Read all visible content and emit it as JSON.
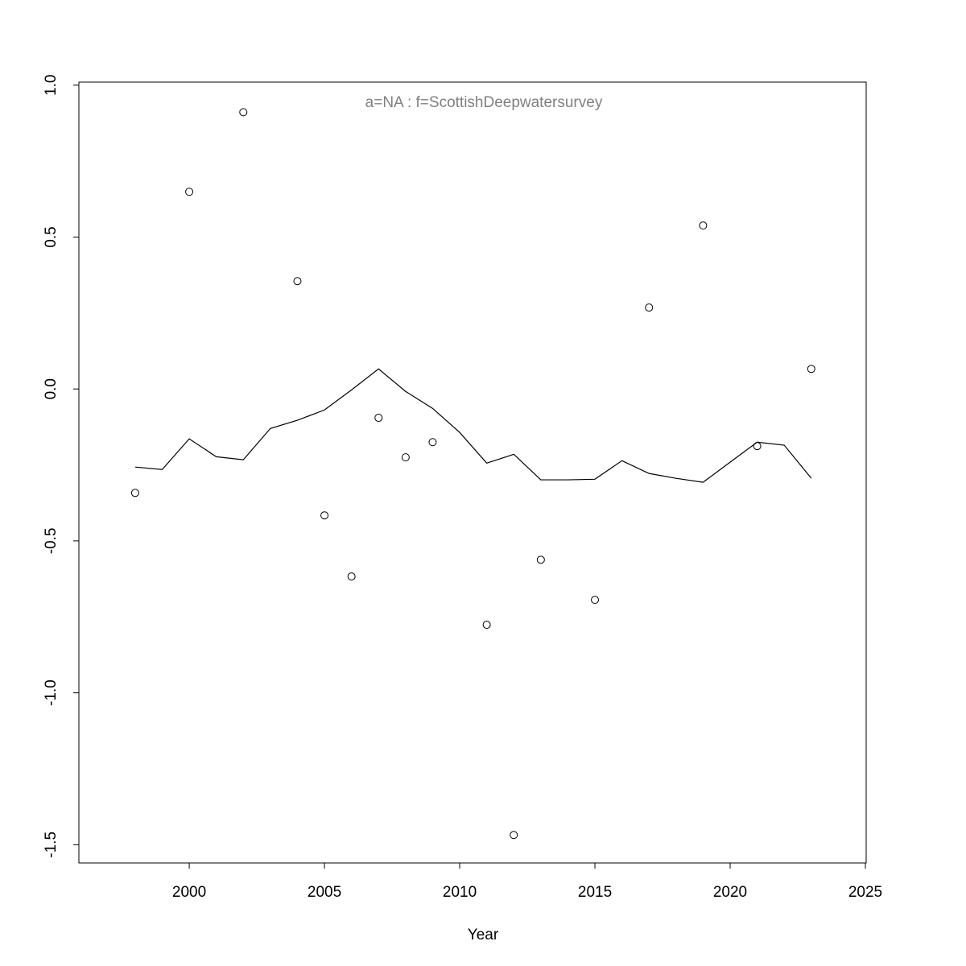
{
  "chart_data": {
    "type": "line",
    "title": "a=NA  :  f=ScottishDeepwatersurvey",
    "title_color": "#808080",
    "x_label": "Year",
    "xlim": [
      1995.92,
      2025.03
    ],
    "ylim": [
      -1.56,
      1.01
    ],
    "xticks": [
      2000,
      2005,
      2010,
      2015,
      2020,
      2025
    ],
    "yticks": [
      -1.5,
      {
        "value": -1,
        "label": "-1.0"
      },
      -0.5,
      {
        "value": 0,
        "label": "0.0"
      },
      0.5,
      {
        "value": 1,
        "label": "1.0"
      }
    ],
    "grid": false,
    "series": [
      {
        "type": "line",
        "color": "#000000",
        "x": [
          1998,
          1999,
          2000,
          2001,
          2002,
          2003,
          2004,
          2005,
          2006,
          2007,
          2008,
          2009,
          2010,
          2011,
          2012,
          2013,
          2014,
          2015,
          2016,
          2017,
          2018,
          2019,
          2020,
          2021,
          2022,
          2023
        ],
        "values": [
          -0.257,
          -0.265,
          -0.164,
          -0.223,
          -0.233,
          -0.13,
          -0.103,
          -0.069,
          -0.003,
          0.066,
          -0.008,
          -0.064,
          -0.143,
          -0.244,
          -0.215,
          -0.299,
          -0.299,
          -0.297,
          -0.236,
          -0.278,
          -0.294,
          -0.307,
          -0.241,
          -0.175,
          -0.185,
          -0.294
        ]
      },
      {
        "type": "scatter",
        "color": "#000000",
        "x": [
          1998,
          2000,
          2002,
          2004,
          2005,
          2006,
          2007,
          2008,
          2009,
          2011,
          2012,
          2013,
          2015,
          2017,
          2019,
          2021,
          2023
        ],
        "values": [
          -0.342,
          0.649,
          0.911,
          0.355,
          -0.416,
          -0.617,
          -0.095,
          -0.225,
          -0.175,
          -0.776,
          -1.468,
          -0.562,
          -0.694,
          0.268,
          0.538,
          -0.188,
          0.066
        ]
      }
    ]
  }
}
